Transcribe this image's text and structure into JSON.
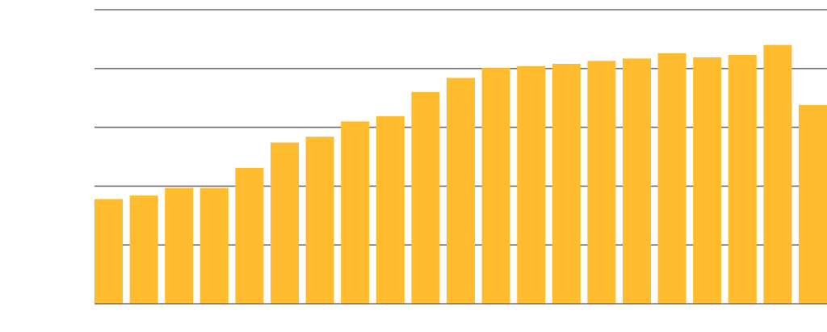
{
  "chart_data": {
    "type": "bar",
    "values": [
      1.78,
      1.84,
      1.97,
      1.97,
      2.31,
      2.74,
      2.84,
      3.1,
      3.19,
      3.6,
      3.84,
      4.01,
      4.04,
      4.08,
      4.13,
      4.17,
      4.26,
      4.19,
      4.23,
      4.4,
      3.38
    ],
    "ylim": [
      0,
      5
    ],
    "yticks": [
      1,
      2,
      3,
      4,
      5
    ],
    "grid": true,
    "bar_color": "#FFBC2E",
    "grid_color": "#6E6E6E"
  }
}
